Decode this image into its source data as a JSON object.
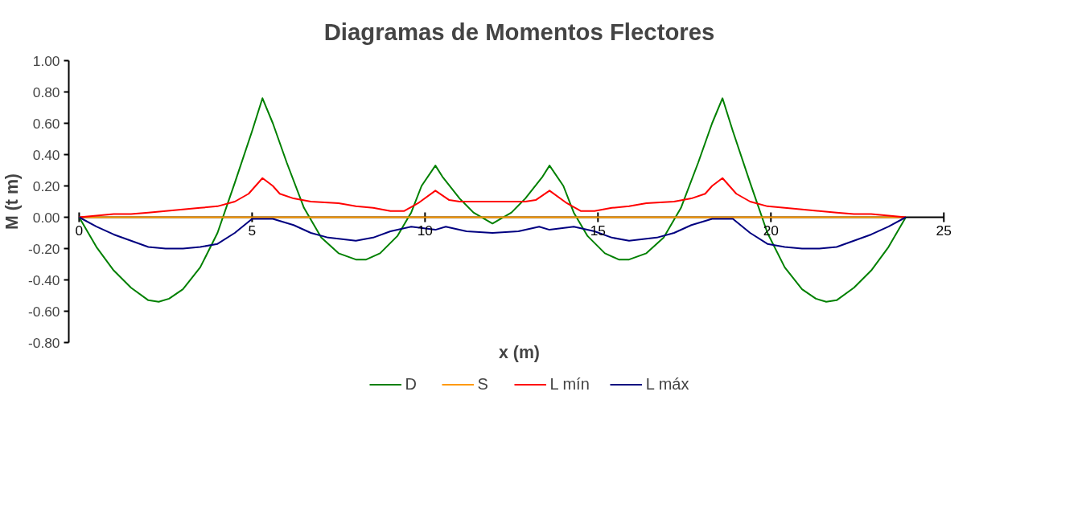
{
  "chart_data": {
    "type": "line",
    "title": "Diagramas de Momentos Flectores",
    "xlabel": "x (m)",
    "ylabel": "M (t m)",
    "xlim": [
      0,
      25
    ],
    "xticks": [
      0,
      5,
      10,
      15,
      20,
      25
    ],
    "ylim": [
      -0.8,
      1.0
    ],
    "yticks": [
      {
        "value": -0.8,
        "label": "-0.80"
      },
      {
        "value": -0.6,
        "label": "-0.60"
      },
      {
        "value": -0.4,
        "label": "-0.40"
      },
      {
        "value": -0.2,
        "label": "-0.20"
      },
      {
        "value": 0,
        "label": "0.00"
      },
      {
        "value": 0.2,
        "label": "0.20"
      },
      {
        "value": 0.4,
        "label": "0.40"
      },
      {
        "value": 0.6,
        "label": "0.60"
      },
      {
        "value": 0.8,
        "label": "0.80"
      },
      {
        "value": 1.0,
        "label": "1.00"
      }
    ],
    "grid": false,
    "legend": "bottom",
    "marker": "none",
    "line_style": "solid",
    "series": [
      {
        "name": "D",
        "color": "#008000",
        "x": [
          0,
          0.5,
          1.0,
          1.5,
          2.0,
          2.3,
          2.6,
          3.0,
          3.5,
          4.0,
          4.5,
          5.0,
          5.3,
          5.6,
          6.0,
          6.5,
          7.0,
          7.5,
          8.0,
          8.3,
          8.7,
          9.2,
          9.6,
          9.9,
          10.3,
          10.5,
          11.0,
          11.4,
          11.95,
          12.5,
          12.9,
          13.4,
          13.6,
          14.0,
          14.3,
          14.7,
          15.2,
          15.6,
          15.9,
          16.4,
          16.9,
          17.4,
          17.9,
          18.3,
          18.6,
          18.9,
          19.4,
          19.9,
          20.4,
          20.9,
          21.3,
          21.6,
          21.9,
          22.4,
          22.9,
          23.4,
          23.9
        ],
        "values": [
          0,
          -0.19,
          -0.34,
          -0.45,
          -0.53,
          -0.54,
          -0.52,
          -0.46,
          -0.32,
          -0.1,
          0.22,
          0.55,
          0.76,
          0.6,
          0.35,
          0.06,
          -0.13,
          -0.23,
          -0.27,
          -0.27,
          -0.23,
          -0.12,
          0.03,
          0.2,
          0.33,
          0.26,
          0.12,
          0.03,
          -0.04,
          0.03,
          0.12,
          0.26,
          0.33,
          0.2,
          0.03,
          -0.12,
          -0.23,
          -0.27,
          -0.27,
          -0.23,
          -0.13,
          0.06,
          0.35,
          0.6,
          0.76,
          0.55,
          0.22,
          -0.1,
          -0.32,
          -0.46,
          -0.52,
          -0.54,
          -0.53,
          -0.45,
          -0.34,
          -0.19,
          0
        ]
      },
      {
        "name": "S",
        "color": "#ff9900",
        "x": [
          0,
          23.9
        ],
        "values": [
          0,
          0
        ]
      },
      {
        "name": "L mín",
        "color": "#ff0000",
        "x": [
          0,
          0.5,
          1.0,
          1.5,
          2.0,
          2.5,
          3.0,
          3.5,
          4.0,
          4.5,
          4.9,
          5.3,
          5.6,
          5.8,
          6.2,
          6.7,
          7.5,
          8.0,
          8.5,
          9.0,
          9.4,
          9.8,
          10.3,
          10.7,
          11.0,
          11.95,
          12.9,
          13.2,
          13.6,
          14.1,
          14.5,
          14.9,
          15.4,
          15.9,
          16.4,
          17.2,
          17.7,
          18.1,
          18.3,
          18.6,
          19.0,
          19.4,
          19.9,
          20.4,
          20.9,
          21.4,
          21.9,
          22.4,
          22.9,
          23.4,
          23.9
        ],
        "values": [
          0,
          0.01,
          0.02,
          0.02,
          0.03,
          0.04,
          0.05,
          0.06,
          0.07,
          0.1,
          0.15,
          0.25,
          0.2,
          0.15,
          0.12,
          0.1,
          0.09,
          0.07,
          0.06,
          0.04,
          0.04,
          0.09,
          0.17,
          0.11,
          0.1,
          0.1,
          0.1,
          0.11,
          0.17,
          0.09,
          0.04,
          0.04,
          0.06,
          0.07,
          0.09,
          0.1,
          0.12,
          0.15,
          0.2,
          0.25,
          0.15,
          0.1,
          0.07,
          0.06,
          0.05,
          0.04,
          0.03,
          0.02,
          0.02,
          0.01,
          0
        ]
      },
      {
        "name": "L máx",
        "color": "#000080",
        "x": [
          0,
          0.5,
          1.0,
          1.5,
          2.0,
          2.5,
          3.0,
          3.5,
          4.0,
          4.5,
          5.0,
          5.6,
          6.2,
          6.7,
          7.2,
          8.0,
          8.5,
          9.0,
          9.6,
          10.3,
          10.6,
          11.2,
          11.95,
          12.7,
          13.3,
          13.6,
          14.3,
          14.9,
          15.4,
          15.9,
          16.7,
          17.2,
          17.7,
          18.3,
          18.9,
          19.4,
          19.9,
          20.4,
          20.9,
          21.4,
          21.9,
          22.4,
          22.9,
          23.4,
          23.9
        ],
        "values": [
          0,
          -0.06,
          -0.11,
          -0.15,
          -0.19,
          -0.2,
          -0.2,
          -0.19,
          -0.17,
          -0.1,
          -0.01,
          -0.01,
          -0.05,
          -0.1,
          -0.13,
          -0.15,
          -0.13,
          -0.09,
          -0.06,
          -0.08,
          -0.06,
          -0.09,
          -0.1,
          -0.09,
          -0.06,
          -0.08,
          -0.06,
          -0.09,
          -0.13,
          -0.15,
          -0.13,
          -0.1,
          -0.05,
          -0.01,
          -0.01,
          -0.1,
          -0.17,
          -0.19,
          -0.2,
          -0.2,
          -0.19,
          -0.15,
          -0.11,
          -0.06,
          0
        ]
      }
    ]
  }
}
